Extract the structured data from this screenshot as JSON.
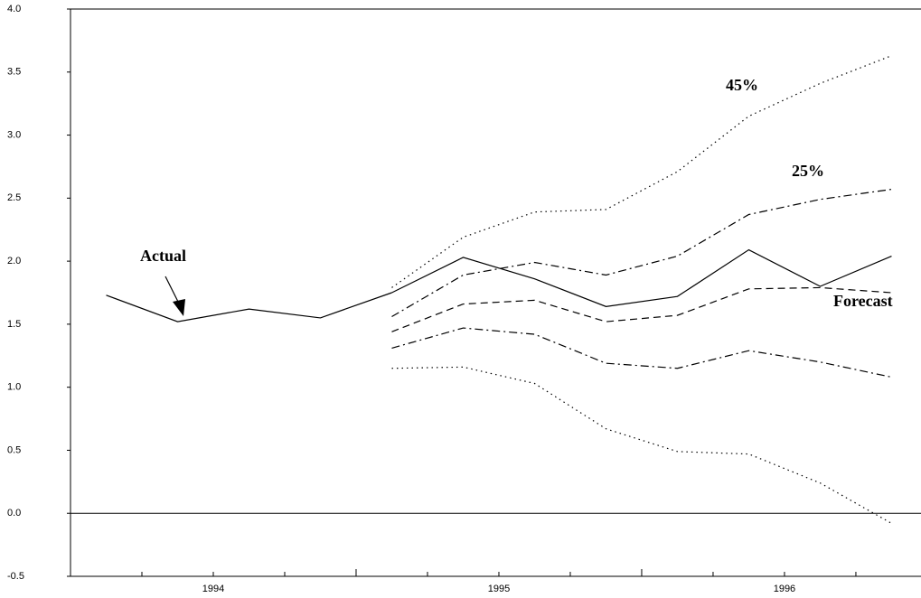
{
  "chart_data": {
    "type": "line",
    "annotations": [
      "45%",
      "25%"
    ],
    "series": [
      {
        "name": "Actual",
        "color": "#000000",
        "dash": "solid",
        "x": [
          1994.125,
          1994.375,
          1994.625,
          1994.875,
          1995.125
        ],
        "values": [
          1.73,
          1.52,
          1.62,
          1.55,
          1.75
        ]
      },
      {
        "name": "Forecast",
        "color": "#000000",
        "dash": "solid",
        "x": [
          1995.125,
          1995.375,
          1995.625,
          1995.875,
          1996.125,
          1996.375,
          1996.625,
          1996.875
        ],
        "values": [
          1.75,
          2.03,
          1.86,
          1.64,
          1.72,
          2.09,
          1.8,
          2.04
        ]
      },
      {
        "color": "#000000",
        "dash": "dotted",
        "x": [
          1995.125,
          1995.375,
          1995.625,
          1995.875,
          1996.125,
          1996.375,
          1996.625,
          1996.875
        ],
        "values": [
          1.79,
          2.19,
          2.39,
          2.41,
          2.71,
          3.15,
          3.41,
          3.63
        ]
      },
      {
        "color": "#000000",
        "dash": "dashdot",
        "x": [
          1995.125,
          1995.375,
          1995.625,
          1995.875,
          1996.125,
          1996.375,
          1996.625,
          1996.875
        ],
        "values": [
          1.56,
          1.89,
          1.99,
          1.89,
          2.04,
          2.37,
          2.49,
          2.57
        ]
      },
      {
        "color": "#000000",
        "dash": "dashed",
        "x": [
          1995.125,
          1995.375,
          1995.625,
          1995.875,
          1996.125,
          1996.375,
          1996.625,
          1996.875
        ],
        "values": [
          1.44,
          1.66,
          1.69,
          1.52,
          1.57,
          1.78,
          1.79,
          1.75
        ]
      },
      {
        "color": "#000000",
        "dash": "dashdot",
        "x": [
          1995.125,
          1995.375,
          1995.625,
          1995.875,
          1996.125,
          1996.375,
          1996.625,
          1996.875
        ],
        "values": [
          1.31,
          1.47,
          1.42,
          1.19,
          1.15,
          1.29,
          1.2,
          1.08
        ]
      },
      {
        "color": "#000000",
        "dash": "dotted",
        "x": [
          1995.125,
          1995.375,
          1995.625,
          1995.875,
          1996.125,
          1996.375,
          1996.625,
          1996.875
        ],
        "values": [
          1.15,
          1.16,
          1.03,
          0.67,
          0.49,
          0.47,
          0.24,
          -0.08
        ]
      }
    ],
    "xlim": [
      1994,
      1996.978
    ],
    "xticks": [
      {
        "value": 1994.5,
        "label": "1994"
      },
      {
        "value": 1995.5,
        "label": "1995"
      },
      {
        "value": 1996.5,
        "label": "1996"
      }
    ],
    "x_minor_ticks": [
      1994.25,
      1994.5,
      1994.75,
      1995,
      1995.25,
      1995.5,
      1995.75,
      1996,
      1996.25,
      1996.5,
      1996.75
    ],
    "ylim": [
      -0.5,
      4.0
    ],
    "yticks": [
      -0.5,
      {
        "value": 0,
        "label": "0.0"
      },
      0.5,
      {
        "value": 1,
        "label": "1.0"
      },
      1.5,
      {
        "value": 2,
        "label": "2.0"
      },
      2.5,
      {
        "value": 3,
        "label": "3.0"
      },
      3.5,
      {
        "value": 4,
        "label": "4.0"
      }
    ],
    "hline": 0,
    "grid": false
  }
}
